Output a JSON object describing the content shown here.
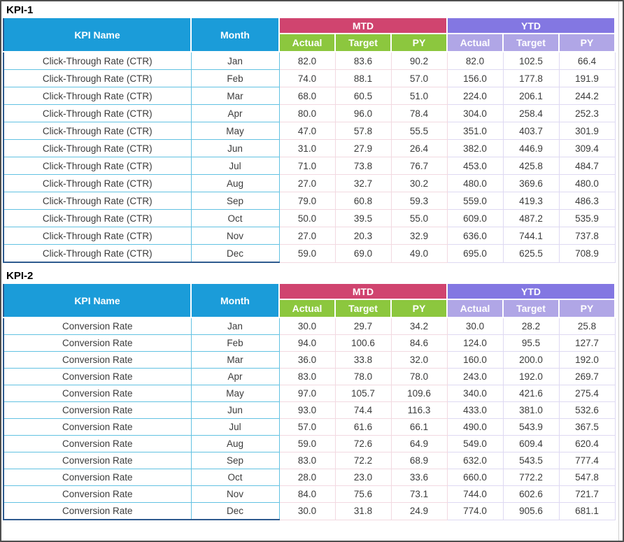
{
  "theme": {
    "cyan": "#1B9CD9",
    "pink": "#D0446F",
    "green": "#8CC73E",
    "purple": "#8377E2",
    "lav": "#B0A6E6",
    "cyanline": "#62C2E2",
    "pinkline": "#F2D9E1",
    "lavline": "#DED9F2",
    "navy": "#2F5B8F",
    "frame": "#4F4F4F"
  },
  "tables": [
    {
      "title": "KPI-1",
      "kpi_name": "Click-Through Rate (CTR)",
      "headers": {
        "kpi_name": "KPI Name",
        "month": "Month",
        "mtd": "MTD",
        "ytd": "YTD",
        "sub": [
          "Actual",
          "Target",
          "PY"
        ]
      },
      "rows": [
        {
          "month": "Jan",
          "mtd": [
            "82.0",
            "83.6",
            "90.2"
          ],
          "ytd": [
            "82.0",
            "102.5",
            "66.4"
          ]
        },
        {
          "month": "Feb",
          "mtd": [
            "74.0",
            "88.1",
            "57.0"
          ],
          "ytd": [
            "156.0",
            "177.8",
            "191.9"
          ]
        },
        {
          "month": "Mar",
          "mtd": [
            "68.0",
            "60.5",
            "51.0"
          ],
          "ytd": [
            "224.0",
            "206.1",
            "244.2"
          ]
        },
        {
          "month": "Apr",
          "mtd": [
            "80.0",
            "96.0",
            "78.4"
          ],
          "ytd": [
            "304.0",
            "258.4",
            "252.3"
          ]
        },
        {
          "month": "May",
          "mtd": [
            "47.0",
            "57.8",
            "55.5"
          ],
          "ytd": [
            "351.0",
            "403.7",
            "301.9"
          ]
        },
        {
          "month": "Jun",
          "mtd": [
            "31.0",
            "27.9",
            "26.4"
          ],
          "ytd": [
            "382.0",
            "446.9",
            "309.4"
          ]
        },
        {
          "month": "Jul",
          "mtd": [
            "71.0",
            "73.8",
            "76.7"
          ],
          "ytd": [
            "453.0",
            "425.8",
            "484.7"
          ]
        },
        {
          "month": "Aug",
          "mtd": [
            "27.0",
            "32.7",
            "30.2"
          ],
          "ytd": [
            "480.0",
            "369.6",
            "480.0"
          ]
        },
        {
          "month": "Sep",
          "mtd": [
            "79.0",
            "60.8",
            "59.3"
          ],
          "ytd": [
            "559.0",
            "419.3",
            "486.3"
          ]
        },
        {
          "month": "Oct",
          "mtd": [
            "50.0",
            "39.5",
            "55.0"
          ],
          "ytd": [
            "609.0",
            "487.2",
            "535.9"
          ]
        },
        {
          "month": "Nov",
          "mtd": [
            "27.0",
            "20.3",
            "32.9"
          ],
          "ytd": [
            "636.0",
            "744.1",
            "737.8"
          ]
        },
        {
          "month": "Dec",
          "mtd": [
            "59.0",
            "69.0",
            "49.0"
          ],
          "ytd": [
            "695.0",
            "625.5",
            "708.9"
          ]
        }
      ]
    },
    {
      "title": "KPI-2",
      "kpi_name": "Conversion Rate",
      "headers": {
        "kpi_name": "KPI Name",
        "month": "Month",
        "mtd": "MTD",
        "ytd": "YTD",
        "sub": [
          "Actual",
          "Target",
          "PY"
        ]
      },
      "rows": [
        {
          "month": "Jan",
          "mtd": [
            "30.0",
            "29.7",
            "34.2"
          ],
          "ytd": [
            "30.0",
            "28.2",
            "25.8"
          ]
        },
        {
          "month": "Feb",
          "mtd": [
            "94.0",
            "100.6",
            "84.6"
          ],
          "ytd": [
            "124.0",
            "95.5",
            "127.7"
          ]
        },
        {
          "month": "Mar",
          "mtd": [
            "36.0",
            "33.8",
            "32.0"
          ],
          "ytd": [
            "160.0",
            "200.0",
            "192.0"
          ]
        },
        {
          "month": "Apr",
          "mtd": [
            "83.0",
            "78.0",
            "78.0"
          ],
          "ytd": [
            "243.0",
            "192.0",
            "269.7"
          ]
        },
        {
          "month": "May",
          "mtd": [
            "97.0",
            "105.7",
            "109.6"
          ],
          "ytd": [
            "340.0",
            "421.6",
            "275.4"
          ]
        },
        {
          "month": "Jun",
          "mtd": [
            "93.0",
            "74.4",
            "116.3"
          ],
          "ytd": [
            "433.0",
            "381.0",
            "532.6"
          ]
        },
        {
          "month": "Jul",
          "mtd": [
            "57.0",
            "61.6",
            "66.1"
          ],
          "ytd": [
            "490.0",
            "543.9",
            "367.5"
          ]
        },
        {
          "month": "Aug",
          "mtd": [
            "59.0",
            "72.6",
            "64.9"
          ],
          "ytd": [
            "549.0",
            "609.4",
            "620.4"
          ]
        },
        {
          "month": "Sep",
          "mtd": [
            "83.0",
            "72.2",
            "68.9"
          ],
          "ytd": [
            "632.0",
            "543.5",
            "777.4"
          ]
        },
        {
          "month": "Oct",
          "mtd": [
            "28.0",
            "23.0",
            "33.6"
          ],
          "ytd": [
            "660.0",
            "772.2",
            "547.8"
          ]
        },
        {
          "month": "Nov",
          "mtd": [
            "84.0",
            "75.6",
            "73.1"
          ],
          "ytd": [
            "744.0",
            "602.6",
            "721.7"
          ]
        },
        {
          "month": "Dec",
          "mtd": [
            "30.0",
            "31.8",
            "24.9"
          ],
          "ytd": [
            "774.0",
            "905.6",
            "681.1"
          ]
        }
      ]
    }
  ]
}
